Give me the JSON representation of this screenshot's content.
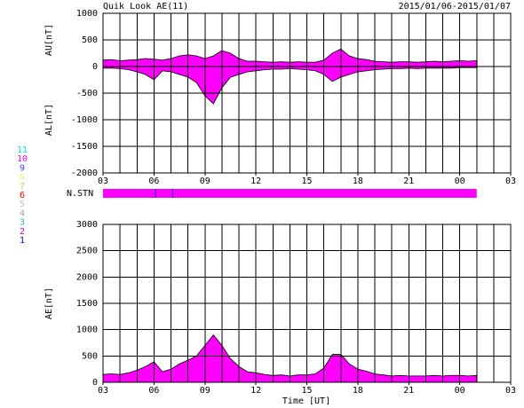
{
  "chart_data": [
    {
      "type": "band",
      "title": "Quik Look AE(11)",
      "date_range": "2015/01/06-2015/01/07",
      "ylabels": [
        "AU[nT]",
        "AL[nT]"
      ],
      "x": [
        3,
        3.5,
        4,
        4.5,
        5,
        5.5,
        6,
        6.5,
        7,
        7.5,
        8,
        8.5,
        9,
        9.5,
        10,
        10.5,
        11,
        11.5,
        12,
        12.5,
        13,
        13.5,
        14,
        14.5,
        15,
        15.5,
        16,
        16.5,
        17,
        17.5,
        18,
        18.5,
        19,
        19.5,
        20,
        20.5,
        21,
        21.5,
        22,
        22.5,
        23,
        23.5,
        24,
        24.5,
        25
      ],
      "series": [
        {
          "color": "#ff00ff",
          "values": [
            120,
            130,
            110,
            120,
            130,
            150,
            140,
            120,
            150,
            200,
            220,
            200,
            150,
            200,
            300,
            250,
            150,
            100,
            100,
            90,
            80,
            90,
            80,
            90,
            80,
            80,
            120,
            250,
            330,
            200,
            150,
            130,
            100,
            90,
            80,
            90,
            90,
            80,
            90,
            100,
            90,
            100,
            110,
            100,
            110
          ]
        },
        {
          "color": "#ff00ff",
          "values": [
            -30,
            -30,
            -40,
            -60,
            -100,
            -150,
            -250,
            -80,
            -100,
            -150,
            -200,
            -300,
            -550,
            -700,
            -400,
            -200,
            -150,
            -100,
            -80,
            -60,
            -50,
            -50,
            -40,
            -50,
            -60,
            -80,
            -150,
            -280,
            -200,
            -150,
            -100,
            -80,
            -60,
            -50,
            -40,
            -40,
            -30,
            -40,
            -30,
            -30,
            -30,
            -30,
            -20,
            -20,
            -20
          ]
        }
      ],
      "xlim": [
        3,
        27
      ],
      "xticks": [
        {
          "value": 3,
          "label": "03"
        },
        {
          "value": 6,
          "label": "06"
        },
        {
          "value": 9,
          "label": "09"
        },
        12,
        15,
        18,
        21,
        {
          "value": 24,
          "label": "00"
        },
        {
          "value": 27,
          "label": "03"
        }
      ],
      "xgrid_step": 1,
      "ylim": [
        -2000,
        1000
      ],
      "yticks": [
        1000,
        500,
        0,
        -500,
        -1000,
        -1500,
        -2000
      ],
      "grid": true
    },
    {
      "type": "area",
      "ylabel": "AE[nT]",
      "xlabel": "Time [UT]",
      "x": [
        3,
        3.5,
        4,
        4.5,
        5,
        5.5,
        6,
        6.5,
        7,
        7.5,
        8,
        8.5,
        9,
        9.5,
        10,
        10.5,
        11,
        11.5,
        12,
        12.5,
        13,
        13.5,
        14,
        14.5,
        15,
        15.5,
        16,
        16.5,
        17,
        17.5,
        18,
        18.5,
        19,
        19.5,
        20,
        20.5,
        21,
        21.5,
        22,
        22.5,
        23,
        23.5,
        24,
        24.5,
        25
      ],
      "series": [
        {
          "color": "#ff00ff",
          "values": [
            150,
            160,
            150,
            180,
            230,
            300,
            390,
            200,
            250,
            350,
            420,
            500,
            700,
            900,
            700,
            450,
            300,
            200,
            180,
            150,
            130,
            140,
            120,
            140,
            140,
            160,
            270,
            530,
            530,
            350,
            250,
            210,
            160,
            140,
            120,
            130,
            120,
            120,
            120,
            130,
            120,
            130,
            130,
            120,
            130
          ]
        }
      ],
      "xlim": [
        3,
        27
      ],
      "xticks": [
        {
          "value": 3,
          "label": "03"
        },
        {
          "value": 6,
          "label": "06"
        },
        {
          "value": 9,
          "label": "09"
        },
        12,
        15,
        18,
        21,
        {
          "value": 24,
          "label": "00"
        },
        {
          "value": 27,
          "label": "03"
        }
      ],
      "xgrid_step": 1,
      "ylim": [
        0,
        3000
      ],
      "yticks": [
        3000,
        2500,
        2000,
        1500,
        1000,
        500,
        0
      ],
      "grid": true
    }
  ],
  "n_stn": {
    "label": "N.STN",
    "start": 3,
    "end": 25,
    "color": "#ff00ff",
    "dropouts": [
      6.1,
      7.1
    ],
    "dropout_color": "#0000ff"
  },
  "station_legend": [
    {
      "label": "11",
      "color": "#00e0e0"
    },
    {
      "label": "10",
      "color": "#ff00ff"
    },
    {
      "label": "9",
      "color": "#4040ff"
    },
    {
      "label": "8",
      "color": "#f0f080"
    },
    {
      "label": "7",
      "color": "#d0d040"
    },
    {
      "label": "6",
      "color": "#ff0000"
    },
    {
      "label": "5",
      "color": "#c0c0c0"
    },
    {
      "label": "4",
      "color": "#a0a0a0"
    },
    {
      "label": "3",
      "color": "#30b0b0"
    },
    {
      "label": "2",
      "color": "#c000c0"
    },
    {
      "label": "1",
      "color": "#0000ff"
    }
  ]
}
